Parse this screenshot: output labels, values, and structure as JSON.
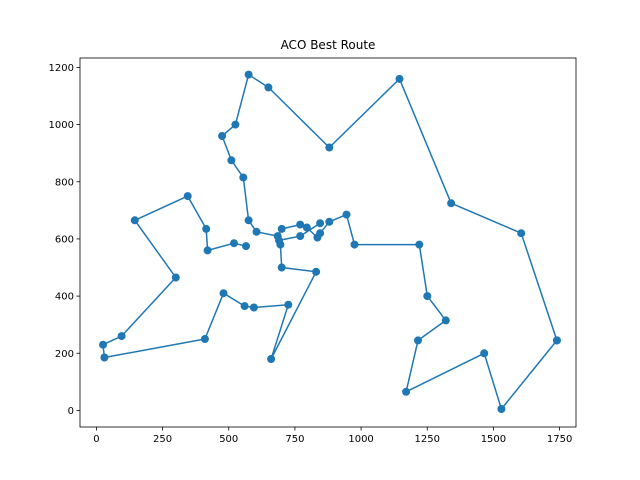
{
  "chart_data": {
    "type": "line",
    "title": "ACO Best Route",
    "xlabel": "",
    "ylabel": "",
    "xlim": [
      -62,
      1812
    ],
    "ylim": [
      -58,
      1233
    ],
    "xticks": [
      0,
      250,
      500,
      750,
      1000,
      1250,
      1500,
      1750
    ],
    "yticks": [
      0,
      200,
      400,
      600,
      800,
      1000,
      1200
    ],
    "grid": false,
    "legend": false,
    "series": [
      {
        "color": "#1f77b4",
        "marker": "circle",
        "x": [
          1740,
          1605,
          1340,
          1145,
          880,
          650,
          575,
          525,
          475,
          510,
          555,
          575,
          605,
          685,
          700,
          770,
          795,
          835,
          845,
          880,
          945,
          975,
          1220,
          1250,
          1320,
          1215,
          1170,
          1465,
          1530,
          1740
        ],
        "y": [
          245,
          620,
          725,
          1160,
          920,
          1130,
          1175,
          1000,
          960,
          875,
          815,
          665,
          625,
          610,
          635,
          650,
          640,
          605,
          620,
          660,
          685,
          580,
          580,
          400,
          315,
          245,
          65,
          200,
          5,
          245
        ]
      },
      {
        "color": "#1f77b4",
        "marker": "circle",
        "x": [
          565,
          520,
          420,
          415,
          345,
          145,
          300,
          95,
          25,
          30,
          410,
          480,
          560,
          595,
          725,
          660,
          830,
          700,
          695,
          690,
          770,
          845
        ],
        "y": [
          575,
          585,
          560,
          635,
          750,
          665,
          465,
          260,
          230,
          185,
          250,
          410,
          365,
          360,
          370,
          180,
          485,
          500,
          580,
          595,
          610,
          655
        ]
      }
    ]
  }
}
